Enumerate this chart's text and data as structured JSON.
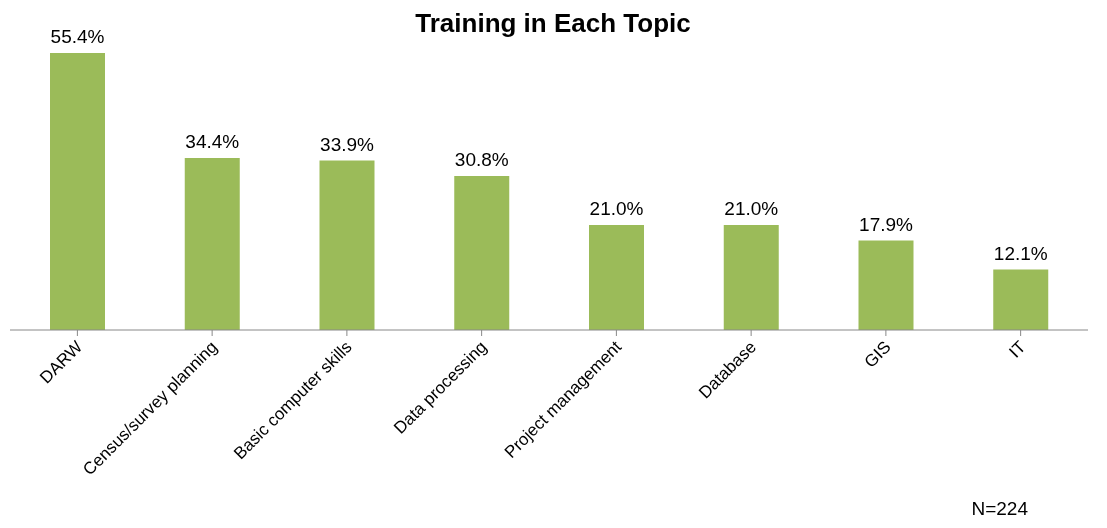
{
  "chart_data": {
    "type": "bar",
    "title": "Training in Each Topic",
    "categories": [
      "DARW",
      "Census/survey planning",
      "Basic computer skills",
      "Data processing",
      "Project management",
      "Database",
      "GIS",
      "IT"
    ],
    "values": [
      55.4,
      34.4,
      33.9,
      30.8,
      21.0,
      21.0,
      17.9,
      12.1
    ],
    "value_labels": [
      "55.4%",
      "34.4%",
      "33.9%",
      "30.8%",
      "21.0%",
      "21.0%",
      "17.9%",
      "12.1%"
    ],
    "color": "#9bbb59",
    "annotations": [
      "N=224"
    ]
  }
}
